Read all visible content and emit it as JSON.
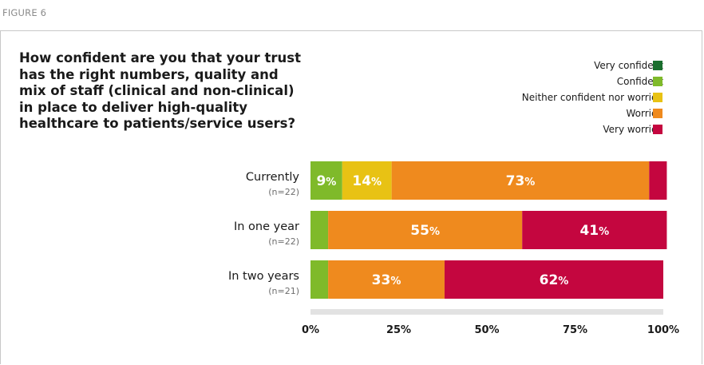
{
  "figure_label": "FIGURE 6",
  "chart_data": {
    "type": "bar",
    "orientation": "horizontal",
    "stacked": true,
    "title": "How confident are you that your trust has the right numbers, quality and mix of staff (clinical and non-clinical) in place to deliver high-quality healthcare to patients/service users?",
    "categories": [
      "Currently",
      "In one year",
      "In two years"
    ],
    "category_notes": [
      "(n=22)",
      "(n=22)",
      "(n=21)"
    ],
    "series": [
      {
        "name": "Very confident",
        "color": "#1a6e2e",
        "values": [
          0,
          0,
          0
        ],
        "labels": [
          "",
          "",
          ""
        ]
      },
      {
        "name": "Confident",
        "color": "#7fba2a",
        "values": [
          9,
          5,
          5
        ],
        "labels": [
          "9",
          "",
          ""
        ]
      },
      {
        "name": "Neither confident nor worried",
        "color": "#e8c214",
        "values": [
          14,
          0,
          0
        ],
        "labels": [
          "14",
          "",
          ""
        ]
      },
      {
        "name": "Worried",
        "color": "#ef8a1e",
        "values": [
          73,
          55,
          33
        ],
        "labels": [
          "73",
          "55",
          "33"
        ]
      },
      {
        "name": "Very worried",
        "color": "#c4063f",
        "values": [
          5,
          41,
          62
        ],
        "labels": [
          "",
          "41",
          "62"
        ]
      }
    ],
    "value_suffix": "%",
    "xlim": [
      0,
      100
    ],
    "x_ticks": [
      "0%",
      "25%",
      "50%",
      "75%",
      "100%"
    ],
    "legend_position": "top-right",
    "grid": false
  }
}
